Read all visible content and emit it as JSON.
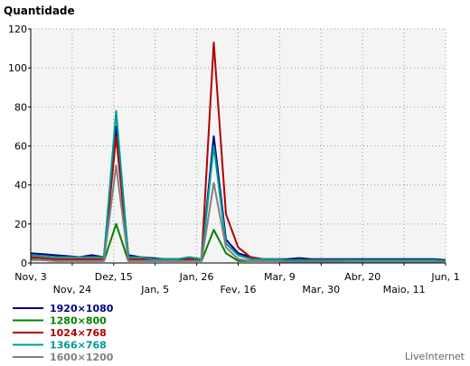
{
  "chart_data": {
    "type": "line",
    "title": "Quantidade",
    "ylim": [
      0,
      120
    ],
    "yticks": [
      0,
      20,
      40,
      60,
      80,
      100,
      120
    ],
    "x_tick_labels_upper": [
      "Nov, 3",
      "Dez, 15",
      "Jan, 26",
      "Mar, 9",
      "Abr, 20",
      "Jun, 1"
    ],
    "x_tick_labels_lower": [
      "Nov, 24",
      "Jan, 5",
      "Fev, 16",
      "Mar, 30",
      "Maio, 11"
    ],
    "x": [
      "Nov, 3",
      "",
      "",
      "",
      "Nov, 24",
      "",
      "Dez, 15",
      "",
      "",
      "",
      "Jan, 5",
      "",
      "",
      "Jan, 26",
      "",
      "",
      "",
      "Fev, 16",
      "",
      "",
      "Mar, 9",
      "",
      "",
      "",
      "Mar, 30",
      "",
      "",
      "Abr, 20",
      "",
      "",
      "",
      "Maio, 11",
      "",
      "",
      "Jun, 1"
    ],
    "grid": true,
    "legend_position": "bottom-left",
    "series": [
      {
        "name": "1920×1080",
        "color": "#000080",
        "values": [
          5,
          4.5,
          4,
          3.5,
          3,
          4,
          3,
          70,
          4,
          3,
          2.5,
          2,
          2,
          2,
          2,
          65,
          12,
          5,
          3,
          2,
          2,
          2,
          2.5,
          2,
          2,
          2,
          2,
          2,
          2,
          2,
          2,
          2,
          2,
          2,
          1.5
        ]
      },
      {
        "name": "1280×800",
        "color": "#008000",
        "values": [
          2,
          1.5,
          1,
          1,
          1,
          1,
          1,
          20,
          1,
          1,
          1,
          1,
          1,
          1,
          1,
          17,
          5,
          1,
          1,
          1,
          1,
          1,
          1,
          0.5,
          0.5,
          0.5,
          0.5,
          0.5,
          0.5,
          0.5,
          0.5,
          0.5,
          0.5,
          0.5,
          0.5
        ]
      },
      {
        "name": "1024×768",
        "color": "#b00000",
        "values": [
          3,
          2.5,
          2,
          2,
          2,
          2,
          2,
          65,
          2,
          2,
          2,
          2,
          2,
          2,
          2,
          113,
          25,
          8,
          3,
          2,
          1,
          1,
          1,
          1,
          1,
          1,
          0.5,
          0.5,
          0.5,
          0.5,
          0.5,
          0.5,
          0.5,
          0.5,
          0.5
        ]
      },
      {
        "name": "1366×768",
        "color": "#009999",
        "values": [
          4,
          3.5,
          3,
          3,
          3,
          3,
          3,
          78,
          3,
          3,
          2,
          2,
          2,
          3,
          2,
          60,
          10,
          4,
          2,
          2,
          2,
          1.5,
          1.5,
          1.5,
          1.5,
          1.5,
          1.5,
          1.5,
          1.5,
          1.5,
          1.5,
          1.5,
          1.5,
          1.5,
          1
        ]
      },
      {
        "name": "1600×1200",
        "color": "#808080",
        "values": [
          1.5,
          1.5,
          1,
          1,
          1,
          1,
          1,
          50,
          1,
          1,
          1,
          1,
          1,
          1,
          1,
          41,
          8,
          2,
          1,
          1,
          1,
          0.5,
          0.5,
          0.5,
          0.5,
          0.5,
          0.5,
          0.5,
          0.5,
          0.5,
          0.5,
          0.5,
          0.5,
          0.5,
          0.5
        ]
      }
    ]
  },
  "footer": {
    "brand": "LiveInternet"
  }
}
